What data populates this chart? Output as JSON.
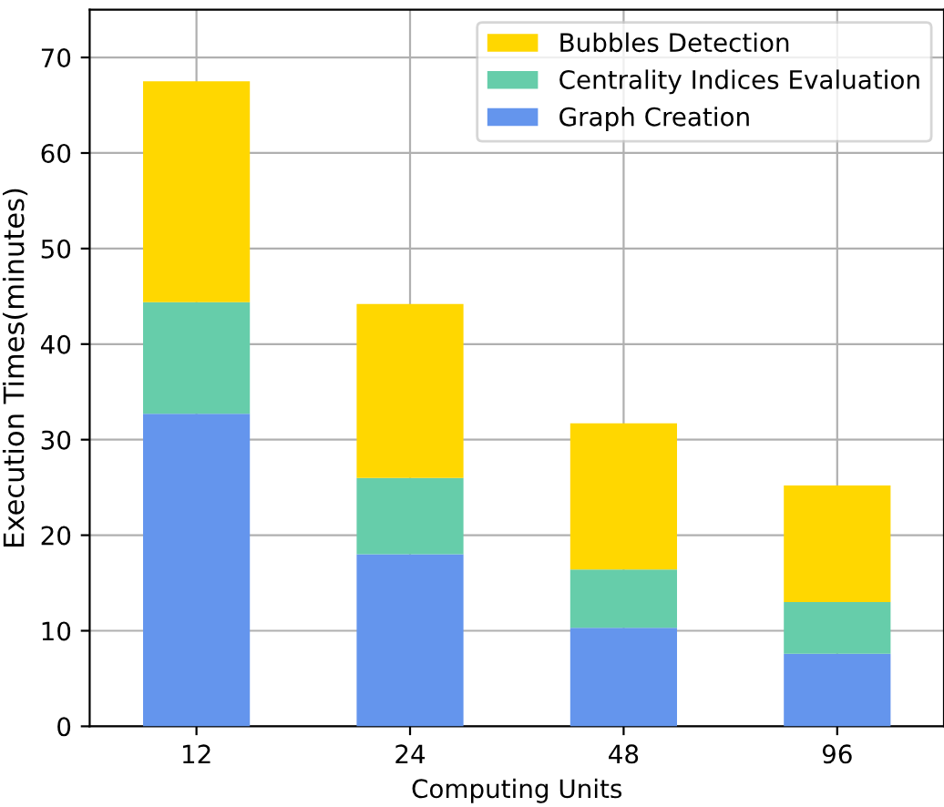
{
  "chart_data": {
    "type": "bar",
    "stacked": true,
    "xlabel": "Computing Units",
    "ylabel": "Execution Times(minutes)",
    "categories": [
      "12",
      "24",
      "48",
      "96"
    ],
    "series": [
      {
        "name": "Graph Creation",
        "color": "#6495ed",
        "values": [
          32.7,
          18.0,
          10.3,
          7.6
        ]
      },
      {
        "name": "Centrality Indices Evaluation",
        "color": "#66cdaa",
        "values": [
          11.7,
          8.0,
          6.1,
          5.4
        ]
      },
      {
        "name": "Bubbles Detection",
        "color": "#ffd700",
        "values": [
          23.1,
          18.2,
          15.3,
          12.2
        ]
      }
    ],
    "ylim": [
      0,
      75
    ],
    "yticks": [
      0,
      10,
      20,
      30,
      40,
      50,
      60,
      70
    ],
    "grid": true,
    "legend": "top right"
  }
}
